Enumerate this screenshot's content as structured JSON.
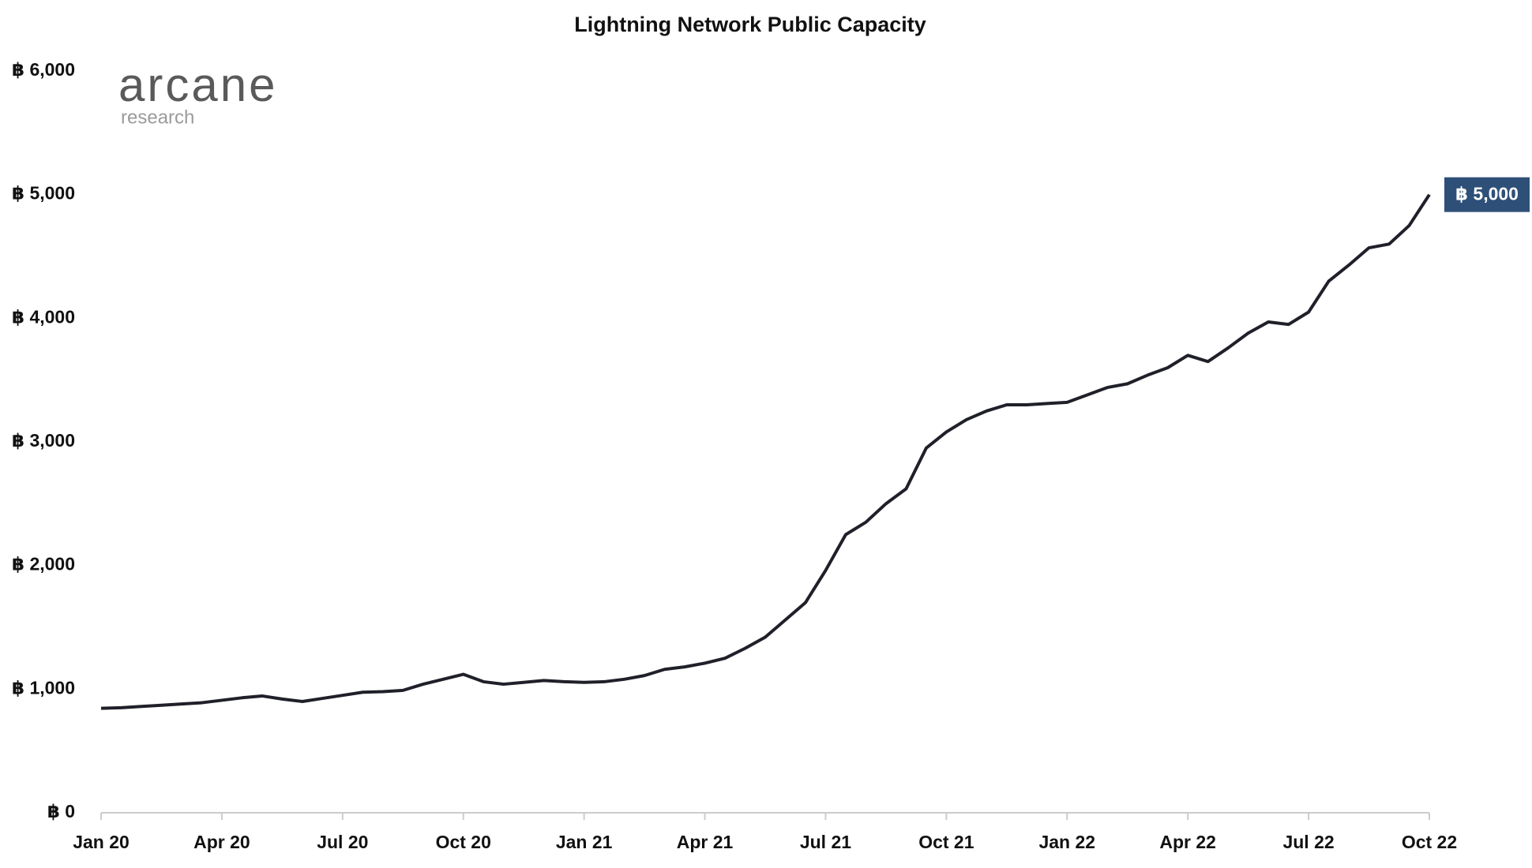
{
  "chart_data": {
    "type": "line",
    "title": "Lightning Network Public Capacity",
    "logo": {
      "name": "arcane",
      "sub": "research"
    },
    "x": [
      0,
      0.5,
      1,
      1.5,
      2,
      2.5,
      3,
      3.5,
      4,
      4.5,
      5,
      5.5,
      6,
      6.5,
      7,
      7.5,
      8,
      8.5,
      9,
      9.5,
      10,
      10.5,
      11,
      11.5,
      12,
      12.5,
      13,
      13.5,
      14,
      14.5,
      15,
      15.5,
      16,
      16.5,
      17,
      17.5,
      18,
      18.5,
      19,
      19.5,
      20,
      20.5,
      21,
      21.5,
      22,
      22.5,
      23,
      23.5,
      24,
      24.5,
      25,
      25.5,
      26,
      26.5,
      27,
      27.5,
      28,
      28.5,
      29,
      29.5,
      30,
      30.5,
      31,
      31.5,
      32,
      32.5,
      33
    ],
    "series": [
      {
        "name": "Public Capacity",
        "color": "#1f2029",
        "values": [
          845,
          850,
          860,
          870,
          880,
          890,
          910,
          930,
          945,
          920,
          900,
          925,
          950,
          975,
          980,
          990,
          1040,
          1080,
          1120,
          1060,
          1040,
          1055,
          1070,
          1060,
          1055,
          1060,
          1080,
          1110,
          1160,
          1180,
          1210,
          1250,
          1330,
          1420,
          1560,
          1700,
          1960,
          2250,
          2350,
          2500,
          2620,
          2950,
          3080,
          3180,
          3250,
          3300,
          3300,
          3310,
          3320,
          3380,
          3440,
          3470,
          3540,
          3600,
          3700,
          3650,
          3760,
          3880,
          3970,
          3950,
          4050,
          4300,
          4430,
          4570,
          4600,
          4750,
          5000
        ]
      }
    ],
    "annotation": {
      "label": "฿ 5,000",
      "value": 5000,
      "color": "#2e4f78"
    },
    "xlim": [
      0,
      33
    ],
    "xticks": [
      {
        "value": 0,
        "label": "Jan 20"
      },
      {
        "value": 3,
        "label": "Apr 20"
      },
      {
        "value": 6,
        "label": "Jul 20"
      },
      {
        "value": 9,
        "label": "Oct 20"
      },
      {
        "value": 12,
        "label": "Jan 21"
      },
      {
        "value": 15,
        "label": "Apr 21"
      },
      {
        "value": 18,
        "label": "Jul 21"
      },
      {
        "value": 21,
        "label": "Oct 21"
      },
      {
        "value": 24,
        "label": "Jan 22"
      },
      {
        "value": 27,
        "label": "Apr 22"
      },
      {
        "value": 30,
        "label": "Jul 22"
      },
      {
        "value": 33,
        "label": "Oct 22"
      }
    ],
    "ylim": [
      0,
      6000
    ],
    "yticks": [
      {
        "value": 0,
        "label": "฿ 0"
      },
      {
        "value": 1000,
        "label": "฿ 1,000"
      },
      {
        "value": 2000,
        "label": "฿ 2,000"
      },
      {
        "value": 3000,
        "label": "฿ 3,000"
      },
      {
        "value": 4000,
        "label": "฿ 4,000"
      },
      {
        "value": 5000,
        "label": "฿ 5,000"
      },
      {
        "value": 6000,
        "label": "฿ 6,000"
      }
    ],
    "grid": false
  }
}
